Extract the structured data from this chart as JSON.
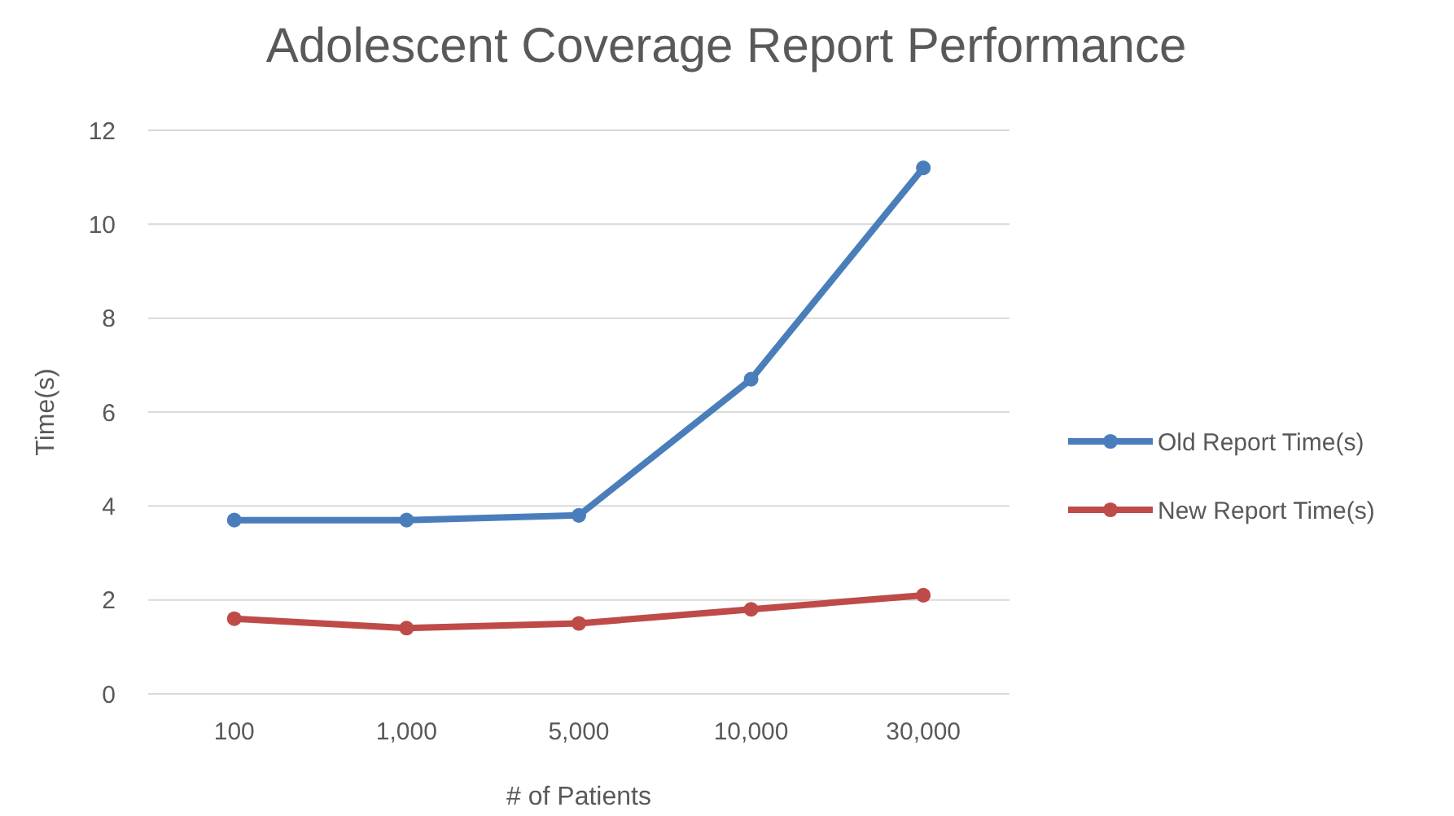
{
  "chart_data": {
    "type": "line",
    "title": "Adolescent Coverage Report Performance",
    "xlabel": "# of Patients",
    "ylabel": "Time(s)",
    "categories": [
      "100",
      "1,000",
      "5,000",
      "10,000",
      "30,000"
    ],
    "series": [
      {
        "name": "Old Report Time(s)",
        "color": "#4a7ebb",
        "values": [
          3.7,
          3.7,
          3.8,
          6.7,
          11.2
        ]
      },
      {
        "name": "New Report Time(s)",
        "color": "#be4b48",
        "values": [
          1.6,
          1.4,
          1.5,
          1.8,
          2.1
        ]
      }
    ],
    "ylim": [
      0,
      12
    ],
    "yticks": [
      0,
      2,
      4,
      6,
      8,
      10,
      12
    ],
    "grid": "y",
    "legend": "right",
    "marker": "circle",
    "line_style": "solid"
  }
}
